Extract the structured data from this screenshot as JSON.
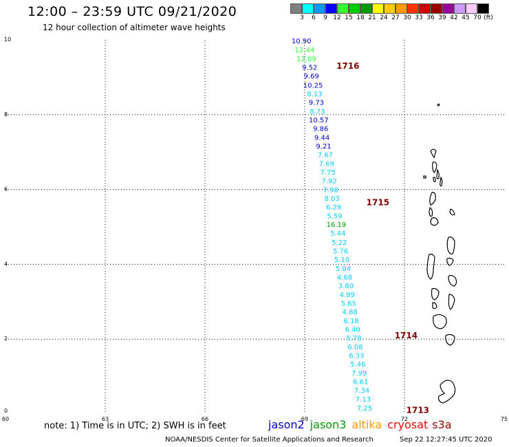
{
  "header": {
    "title": "12:00 – 23:59 UTC 09/21/2020",
    "subtitle": "12 hour collection of altimeter wave heights"
  },
  "legend": {
    "colors": [
      "#808080",
      "#00ffff",
      "#0099ff",
      "#0000ff",
      "#33ff33",
      "#00cc00",
      "#009900",
      "#ffff00",
      "#ffcc00",
      "#ff9900",
      "#ff3300",
      "#cc0000",
      "#990000",
      "#990099",
      "#cc99ff",
      "#ffccff",
      "#000000"
    ],
    "labels": [
      "3",
      "6",
      "9",
      "12",
      "15",
      "18",
      "21",
      "24",
      "27",
      "30",
      "33",
      "36",
      "39",
      "42",
      "45",
      "70"
    ],
    "unit": "(ft)"
  },
  "axes": {
    "x_ticks": [
      "60",
      "63",
      "66",
      "69",
      "72",
      "75"
    ],
    "y_ticks": [
      "0",
      "2",
      "4",
      "6",
      "8",
      "10"
    ]
  },
  "chart_data": {
    "type": "scatter",
    "xlim": [
      60,
      75
    ],
    "ylim": [
      0,
      10
    ],
    "grid": true,
    "passes": [
      {
        "label": "1716",
        "lon": 70.3,
        "lat": 9.3
      },
      {
        "label": "1715",
        "lon": 71.2,
        "lat": 5.65
      },
      {
        "label": "1714",
        "lon": 72.05,
        "lat": 2.1
      },
      {
        "label": "1713",
        "lon": 72.4,
        "lat": 0.1
      }
    ],
    "points": [
      {
        "v": "10.90",
        "lon": 68.9,
        "lat": 9.98,
        "color": "#0000cc"
      },
      {
        "v": "12.44",
        "lon": 69.0,
        "lat": 9.74,
        "color": "#33ff33"
      },
      {
        "v": "12.09",
        "lon": 69.05,
        "lat": 9.5,
        "color": "#33ff33"
      },
      {
        "v": "9.52",
        "lon": 69.15,
        "lat": 9.27,
        "color": "#0000cc"
      },
      {
        "v": "9.69",
        "lon": 69.2,
        "lat": 9.04,
        "color": "#0000cc"
      },
      {
        "v": "10.25",
        "lon": 69.25,
        "lat": 8.8,
        "color": "#0000cc"
      },
      {
        "v": "8.13",
        "lon": 69.3,
        "lat": 8.57,
        "color": "#00ccff"
      },
      {
        "v": "9.73",
        "lon": 69.35,
        "lat": 8.34,
        "color": "#0000cc"
      },
      {
        "v": "8.73",
        "lon": 69.38,
        "lat": 8.1,
        "color": "#00ccff"
      },
      {
        "v": "10.57",
        "lon": 69.42,
        "lat": 7.87,
        "color": "#0000cc"
      },
      {
        "v": "9.86",
        "lon": 69.48,
        "lat": 7.64,
        "color": "#0000cc"
      },
      {
        "v": "9.44",
        "lon": 69.52,
        "lat": 7.4,
        "color": "#0000cc"
      },
      {
        "v": "9.21",
        "lon": 69.57,
        "lat": 7.17,
        "color": "#0000cc"
      },
      {
        "v": "7.67",
        "lon": 69.62,
        "lat": 6.94,
        "color": "#00ccff"
      },
      {
        "v": "7.69",
        "lon": 69.66,
        "lat": 6.7,
        "color": "#00ccff"
      },
      {
        "v": "7.75",
        "lon": 69.7,
        "lat": 6.47,
        "color": "#00ccff"
      },
      {
        "v": "7.92",
        "lon": 69.74,
        "lat": 6.24,
        "color": "#00ccff"
      },
      {
        "v": "7.98",
        "lon": 69.78,
        "lat": 6.0,
        "color": "#00ccff"
      },
      {
        "v": "8.03",
        "lon": 69.82,
        "lat": 5.77,
        "color": "#00ccff"
      },
      {
        "v": "6.29",
        "lon": 69.87,
        "lat": 5.54,
        "color": "#00ccff"
      },
      {
        "v": "5.59",
        "lon": 69.9,
        "lat": 5.3,
        "color": "#00ccff"
      },
      {
        "v": "16.19",
        "lon": 69.95,
        "lat": 5.07,
        "color": "#009900"
      },
      {
        "v": "5.44",
        "lon": 70.0,
        "lat": 4.84,
        "color": "#00ccff"
      },
      {
        "v": "5.22",
        "lon": 70.04,
        "lat": 4.6,
        "color": "#00ccff"
      },
      {
        "v": "5.76",
        "lon": 70.08,
        "lat": 4.37,
        "color": "#00ccff"
      },
      {
        "v": "5.10",
        "lon": 70.12,
        "lat": 4.14,
        "color": "#00ccff"
      },
      {
        "v": "5.04",
        "lon": 70.16,
        "lat": 3.9,
        "color": "#00ccff"
      },
      {
        "v": "4.68",
        "lon": 70.2,
        "lat": 3.67,
        "color": "#00ccff"
      },
      {
        "v": "3.80",
        "lon": 70.24,
        "lat": 3.44,
        "color": "#00ccff"
      },
      {
        "v": "4.89",
        "lon": 70.28,
        "lat": 3.2,
        "color": "#00ccff"
      },
      {
        "v": "5.65",
        "lon": 70.32,
        "lat": 2.97,
        "color": "#00ccff"
      },
      {
        "v": "4.88",
        "lon": 70.36,
        "lat": 2.74,
        "color": "#00ccff"
      },
      {
        "v": "6.18",
        "lon": 70.4,
        "lat": 2.5,
        "color": "#00ccff"
      },
      {
        "v": "6.40",
        "lon": 70.44,
        "lat": 2.27,
        "color": "#00ccff"
      },
      {
        "v": "5.78",
        "lon": 70.48,
        "lat": 2.04,
        "color": "#00ccff"
      },
      {
        "v": "6.08",
        "lon": 70.52,
        "lat": 1.8,
        "color": "#00ccff"
      },
      {
        "v": "6.33",
        "lon": 70.56,
        "lat": 1.57,
        "color": "#00ccff"
      },
      {
        "v": "5.46",
        "lon": 70.6,
        "lat": 1.34,
        "color": "#00ccff"
      },
      {
        "v": "7.99",
        "lon": 70.64,
        "lat": 1.1,
        "color": "#00ccff"
      },
      {
        "v": "6.61",
        "lon": 70.68,
        "lat": 0.87,
        "color": "#00ccff"
      },
      {
        "v": "7.34",
        "lon": 70.72,
        "lat": 0.64,
        "color": "#00ccff"
      },
      {
        "v": "7.13",
        "lon": 70.76,
        "lat": 0.4,
        "color": "#00ccff"
      },
      {
        "v": "7.25",
        "lon": 70.8,
        "lat": 0.17,
        "color": "#00ccff"
      }
    ]
  },
  "note": "note:  1) Time is in UTC;  2) SWH is in feet",
  "satellites": [
    {
      "name": "jason2",
      "color": "#0000cc"
    },
    {
      "name": "jason3",
      "color": "#009900"
    },
    {
      "name": "altika",
      "color": "#ff9900"
    },
    {
      "name": "cryosat",
      "color": "#ff0000"
    },
    {
      "name": "s3a",
      "color": "#990000"
    }
  ],
  "footer": {
    "credit": "NOAA/NESDIS Center for Satellite Applications and Research",
    "timestamp": "Sep 22 12:27:45 UTC 2020"
  }
}
